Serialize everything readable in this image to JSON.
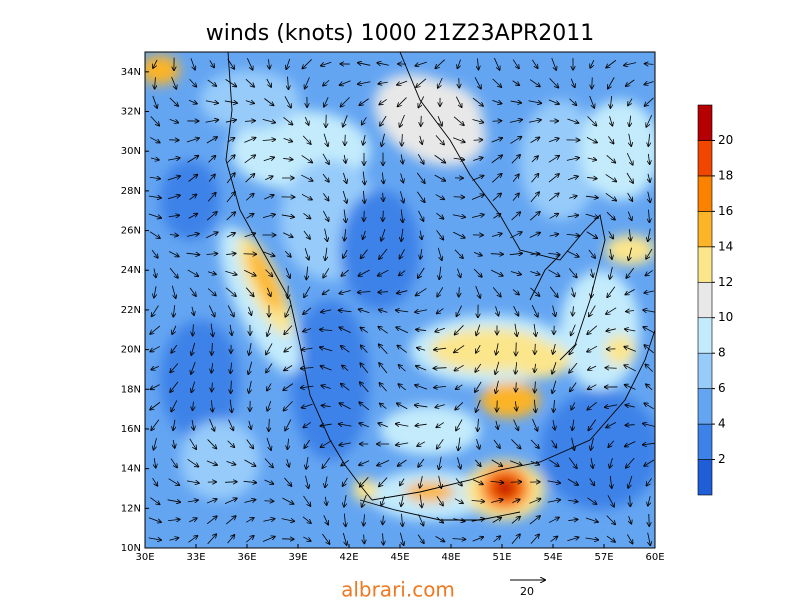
{
  "map": {
    "title": "winds (knots) 1000 21Z23APR2011",
    "lon_ticks": [
      {
        "value": 30,
        "label": "30E"
      },
      {
        "value": 33,
        "label": "33E"
      },
      {
        "value": 36,
        "label": "36E"
      },
      {
        "value": 39,
        "label": "39E"
      },
      {
        "value": 42,
        "label": "42E"
      },
      {
        "value": 45,
        "label": "45E"
      },
      {
        "value": 48,
        "label": "48E"
      },
      {
        "value": 51,
        "label": "51E"
      },
      {
        "value": 54,
        "label": "54E"
      },
      {
        "value": 57,
        "label": "57E"
      },
      {
        "value": 60,
        "label": "60E"
      }
    ],
    "lat_ticks": [
      {
        "value": 10,
        "label": "10N"
      },
      {
        "value": 12,
        "label": "12N"
      },
      {
        "value": 14,
        "label": "14N"
      },
      {
        "value": 16,
        "label": "16N"
      },
      {
        "value": 18,
        "label": "18N"
      },
      {
        "value": 20,
        "label": "20N"
      },
      {
        "value": 22,
        "label": "22N"
      },
      {
        "value": 24,
        "label": "24N"
      },
      {
        "value": 26,
        "label": "26N"
      },
      {
        "value": 28,
        "label": "28N"
      },
      {
        "value": 30,
        "label": "30N"
      },
      {
        "value": 32,
        "label": "32N"
      },
      {
        "value": 34,
        "label": "34N"
      }
    ],
    "lonlim": [
      30,
      60
    ],
    "latlim": [
      10,
      35
    ],
    "colorbar": {
      "lim": [
        0,
        22
      ],
      "ticks": [
        2,
        4,
        6,
        8,
        10,
        12,
        14,
        16,
        18,
        20
      ],
      "colors": [
        "#1e5fd8",
        "#3c82e8",
        "#64a5f2",
        "#96cbfa",
        "#c3ebfc",
        "#e8e8e8",
        "#fce68c",
        "#fcb428",
        "#fa8200",
        "#f04600",
        "#b40000"
      ]
    },
    "footer": "albrari.com",
    "reference_vector": "20"
  }
}
